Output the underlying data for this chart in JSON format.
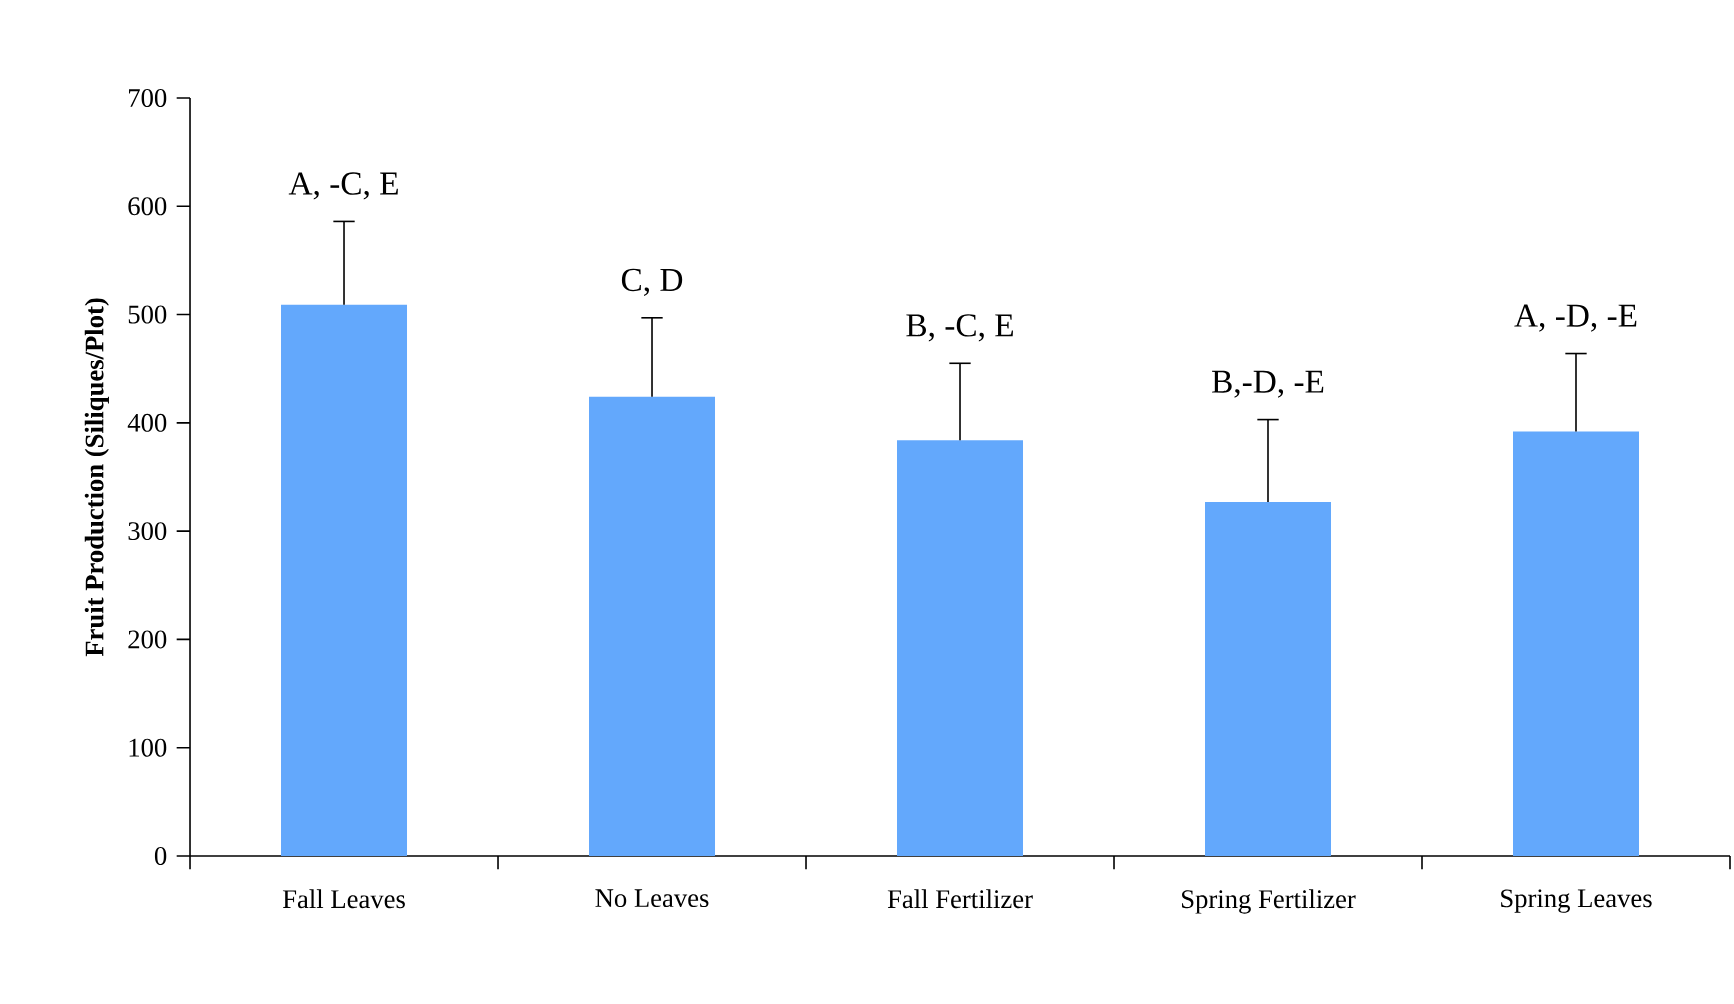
{
  "chart_data": {
    "type": "bar",
    "ylabel": "Fruit Production (Siliques/Plot)",
    "categories": [
      "Fall Leaves",
      "No Leaves",
      "Fall Fertilizer",
      "Spring Fertilizer",
      "Spring Leaves"
    ],
    "values": [
      509,
      424,
      384,
      327,
      392
    ],
    "errors": [
      [
        509,
        586
      ],
      [
        424,
        497
      ],
      [
        384,
        455
      ],
      [
        327,
        403
      ],
      [
        392,
        464
      ]
    ],
    "color": "#63a8fc",
    "ylim": [
      0,
      700
    ],
    "yticks": [
      0,
      100,
      200,
      300,
      400,
      500,
      600,
      700
    ],
    "grid": false,
    "annotations": [
      {
        "text": "A, -C, E",
        "x": "Fall Leaves",
        "y": 586
      },
      {
        "text": "C, D",
        "x": "No Leaves",
        "y": 497
      },
      {
        "text": "B, -C, E",
        "x": "Fall Fertilizer",
        "y": 455
      },
      {
        "text": "B,-D, -E",
        "x": "Spring Fertilizer",
        "y": 403
      },
      {
        "text": "A, -D, -E",
        "x": "Spring Leaves",
        "y": 464
      }
    ]
  }
}
